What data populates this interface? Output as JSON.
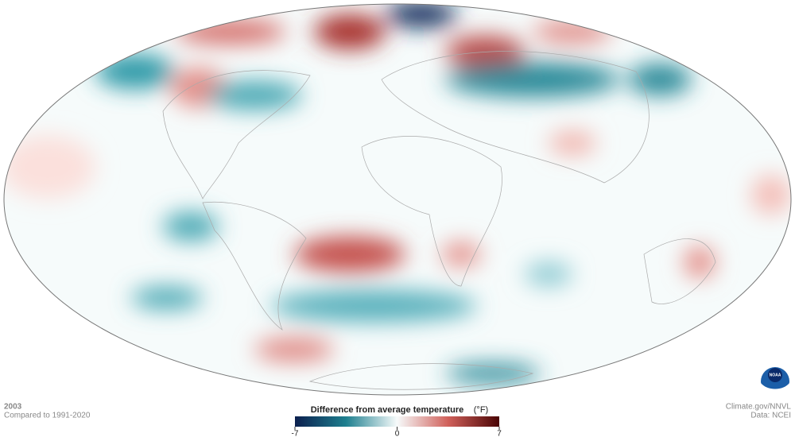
{
  "caption": {
    "year": "2003",
    "baseline": "Compared to 1991-2020"
  },
  "colorbar": {
    "title": "Difference from average temperature",
    "unit": "(°F)",
    "lim": [
      -7,
      7
    ],
    "ticks": [
      -7,
      0,
      7
    ]
  },
  "credits": {
    "source": "Climate.gov/NNVL",
    "data": "Data: NCEI",
    "logo": "NOAA"
  }
}
